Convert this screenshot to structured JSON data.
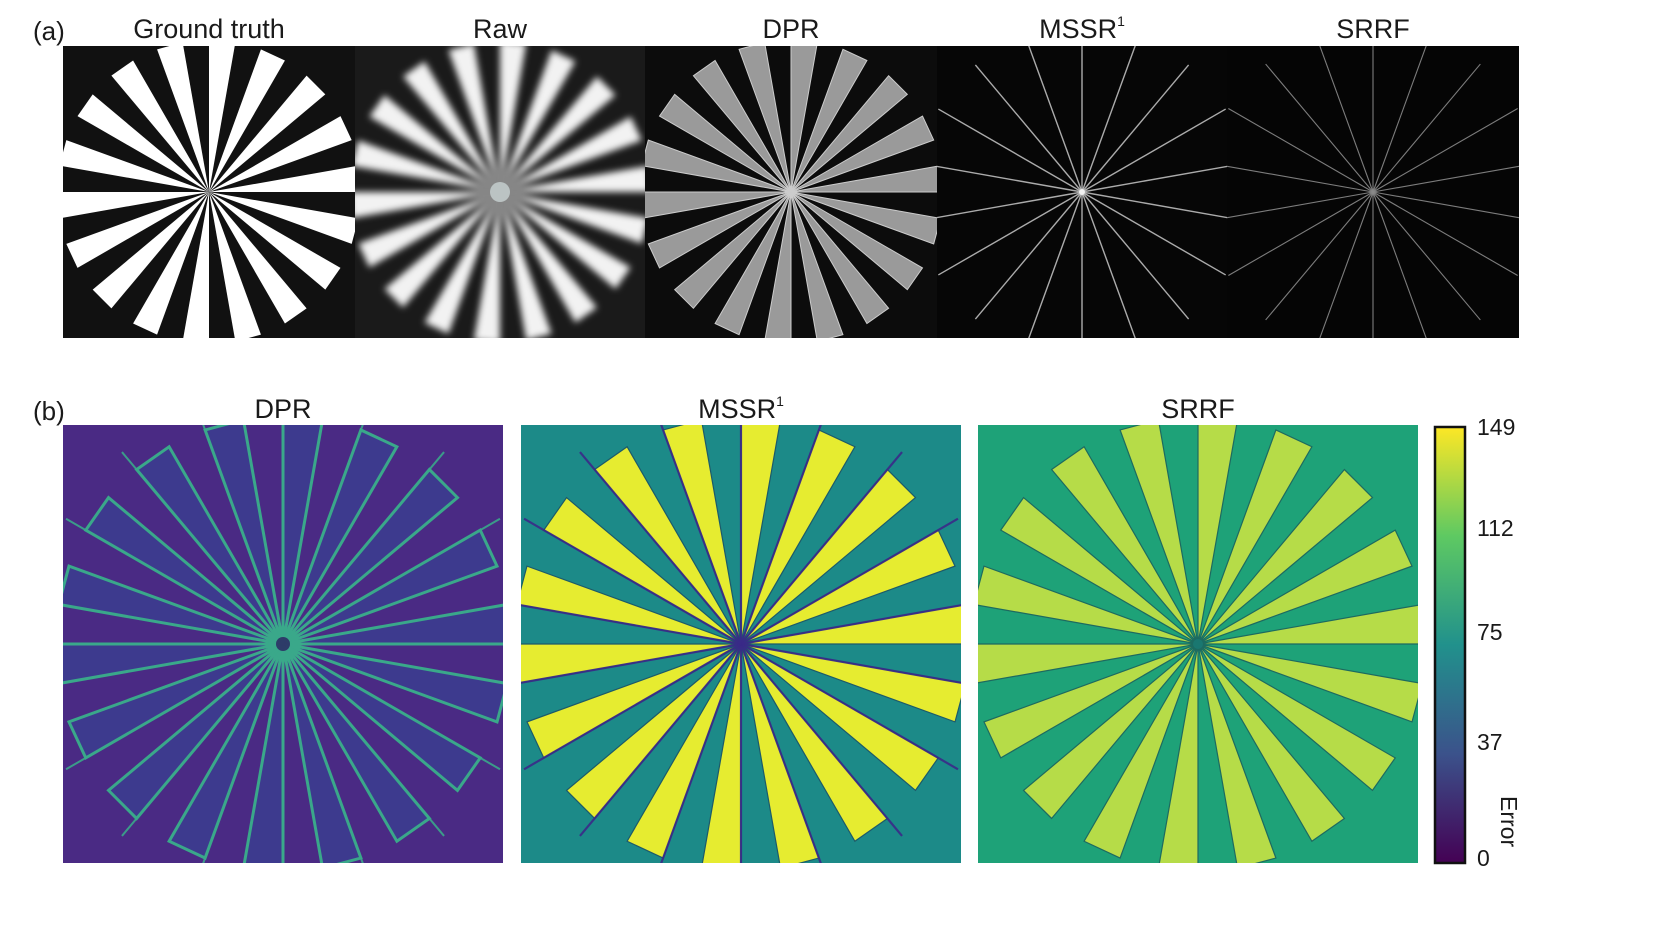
{
  "panel_a": {
    "label": "(a)",
    "columns": [
      {
        "id": "gt",
        "title": "Ground truth",
        "sup": "",
        "style": "groundtruth"
      },
      {
        "id": "raw",
        "title": "Raw",
        "sup": "",
        "style": "raw"
      },
      {
        "id": "dpr",
        "title": "DPR",
        "sup": "",
        "style": "dpr"
      },
      {
        "id": "mssr",
        "title": "MSSR",
        "sup": "1",
        "style": "mssr"
      },
      {
        "id": "srrf",
        "title": "SRRF",
        "sup": "",
        "style": "srrf"
      }
    ]
  },
  "panel_b": {
    "label": "(b)",
    "maps": [
      {
        "id": "dpr",
        "title": "DPR",
        "sup": ""
      },
      {
        "id": "mssr",
        "title": "MSSR",
        "sup": "1"
      },
      {
        "id": "srrf",
        "title": "SRRF",
        "sup": ""
      }
    ],
    "colorbar": {
      "label": "Error",
      "ticks": [
        "149",
        "112",
        "75",
        "37",
        "0"
      ],
      "colormap": [
        "#440154",
        "#3b528b",
        "#21918c",
        "#5ec962",
        "#fde725"
      ]
    }
  },
  "colors": {
    "dpr_bg": "#4a2a84",
    "dpr_edge": "#3aa88a",
    "mssr_bg": "#1c8a88",
    "mssr_fill": "#e6ec30",
    "mssr_dark": "#3a2a88",
    "srrf_bg": "#1ea278",
    "srrf_fill": "#b6dc48"
  }
}
